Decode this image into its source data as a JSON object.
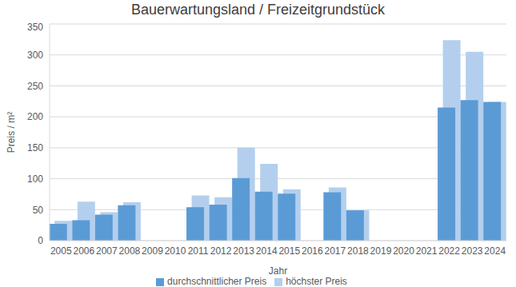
{
  "chart_data": {
    "type": "bar",
    "title": "Bauerwartungsland / Freizeitgrundstück",
    "x_label": "Jahr",
    "y_label": "Preis / m²",
    "categories": [
      "2005",
      "2006",
      "2007",
      "2008",
      "2009",
      "2010",
      "2011",
      "2012",
      "2013",
      "2014",
      "2015",
      "2016",
      "2017",
      "2018",
      "2019",
      "2020",
      "2021",
      "2022",
      "2023",
      "2024"
    ],
    "series": [
      {
        "name": "höchster Preis",
        "color": "#b4cfee",
        "values": [
          32,
          63,
          46,
          62,
          null,
          null,
          73,
          70,
          150,
          124,
          83,
          null,
          86,
          49,
          null,
          null,
          null,
          324,
          305,
          224
        ]
      },
      {
        "name": "durchschnittlicher Preis",
        "color": "#5b9bd5",
        "values": [
          27,
          33,
          42,
          57,
          null,
          null,
          54,
          58,
          101,
          79,
          76,
          null,
          78,
          49,
          null,
          null,
          null,
          215,
          227,
          224
        ]
      }
    ],
    "ylim": [
      0,
      350
    ],
    "yticks": [
      0,
      50,
      100,
      150,
      200,
      250,
      300,
      350
    ],
    "grid": true,
    "legend": "bottom"
  }
}
